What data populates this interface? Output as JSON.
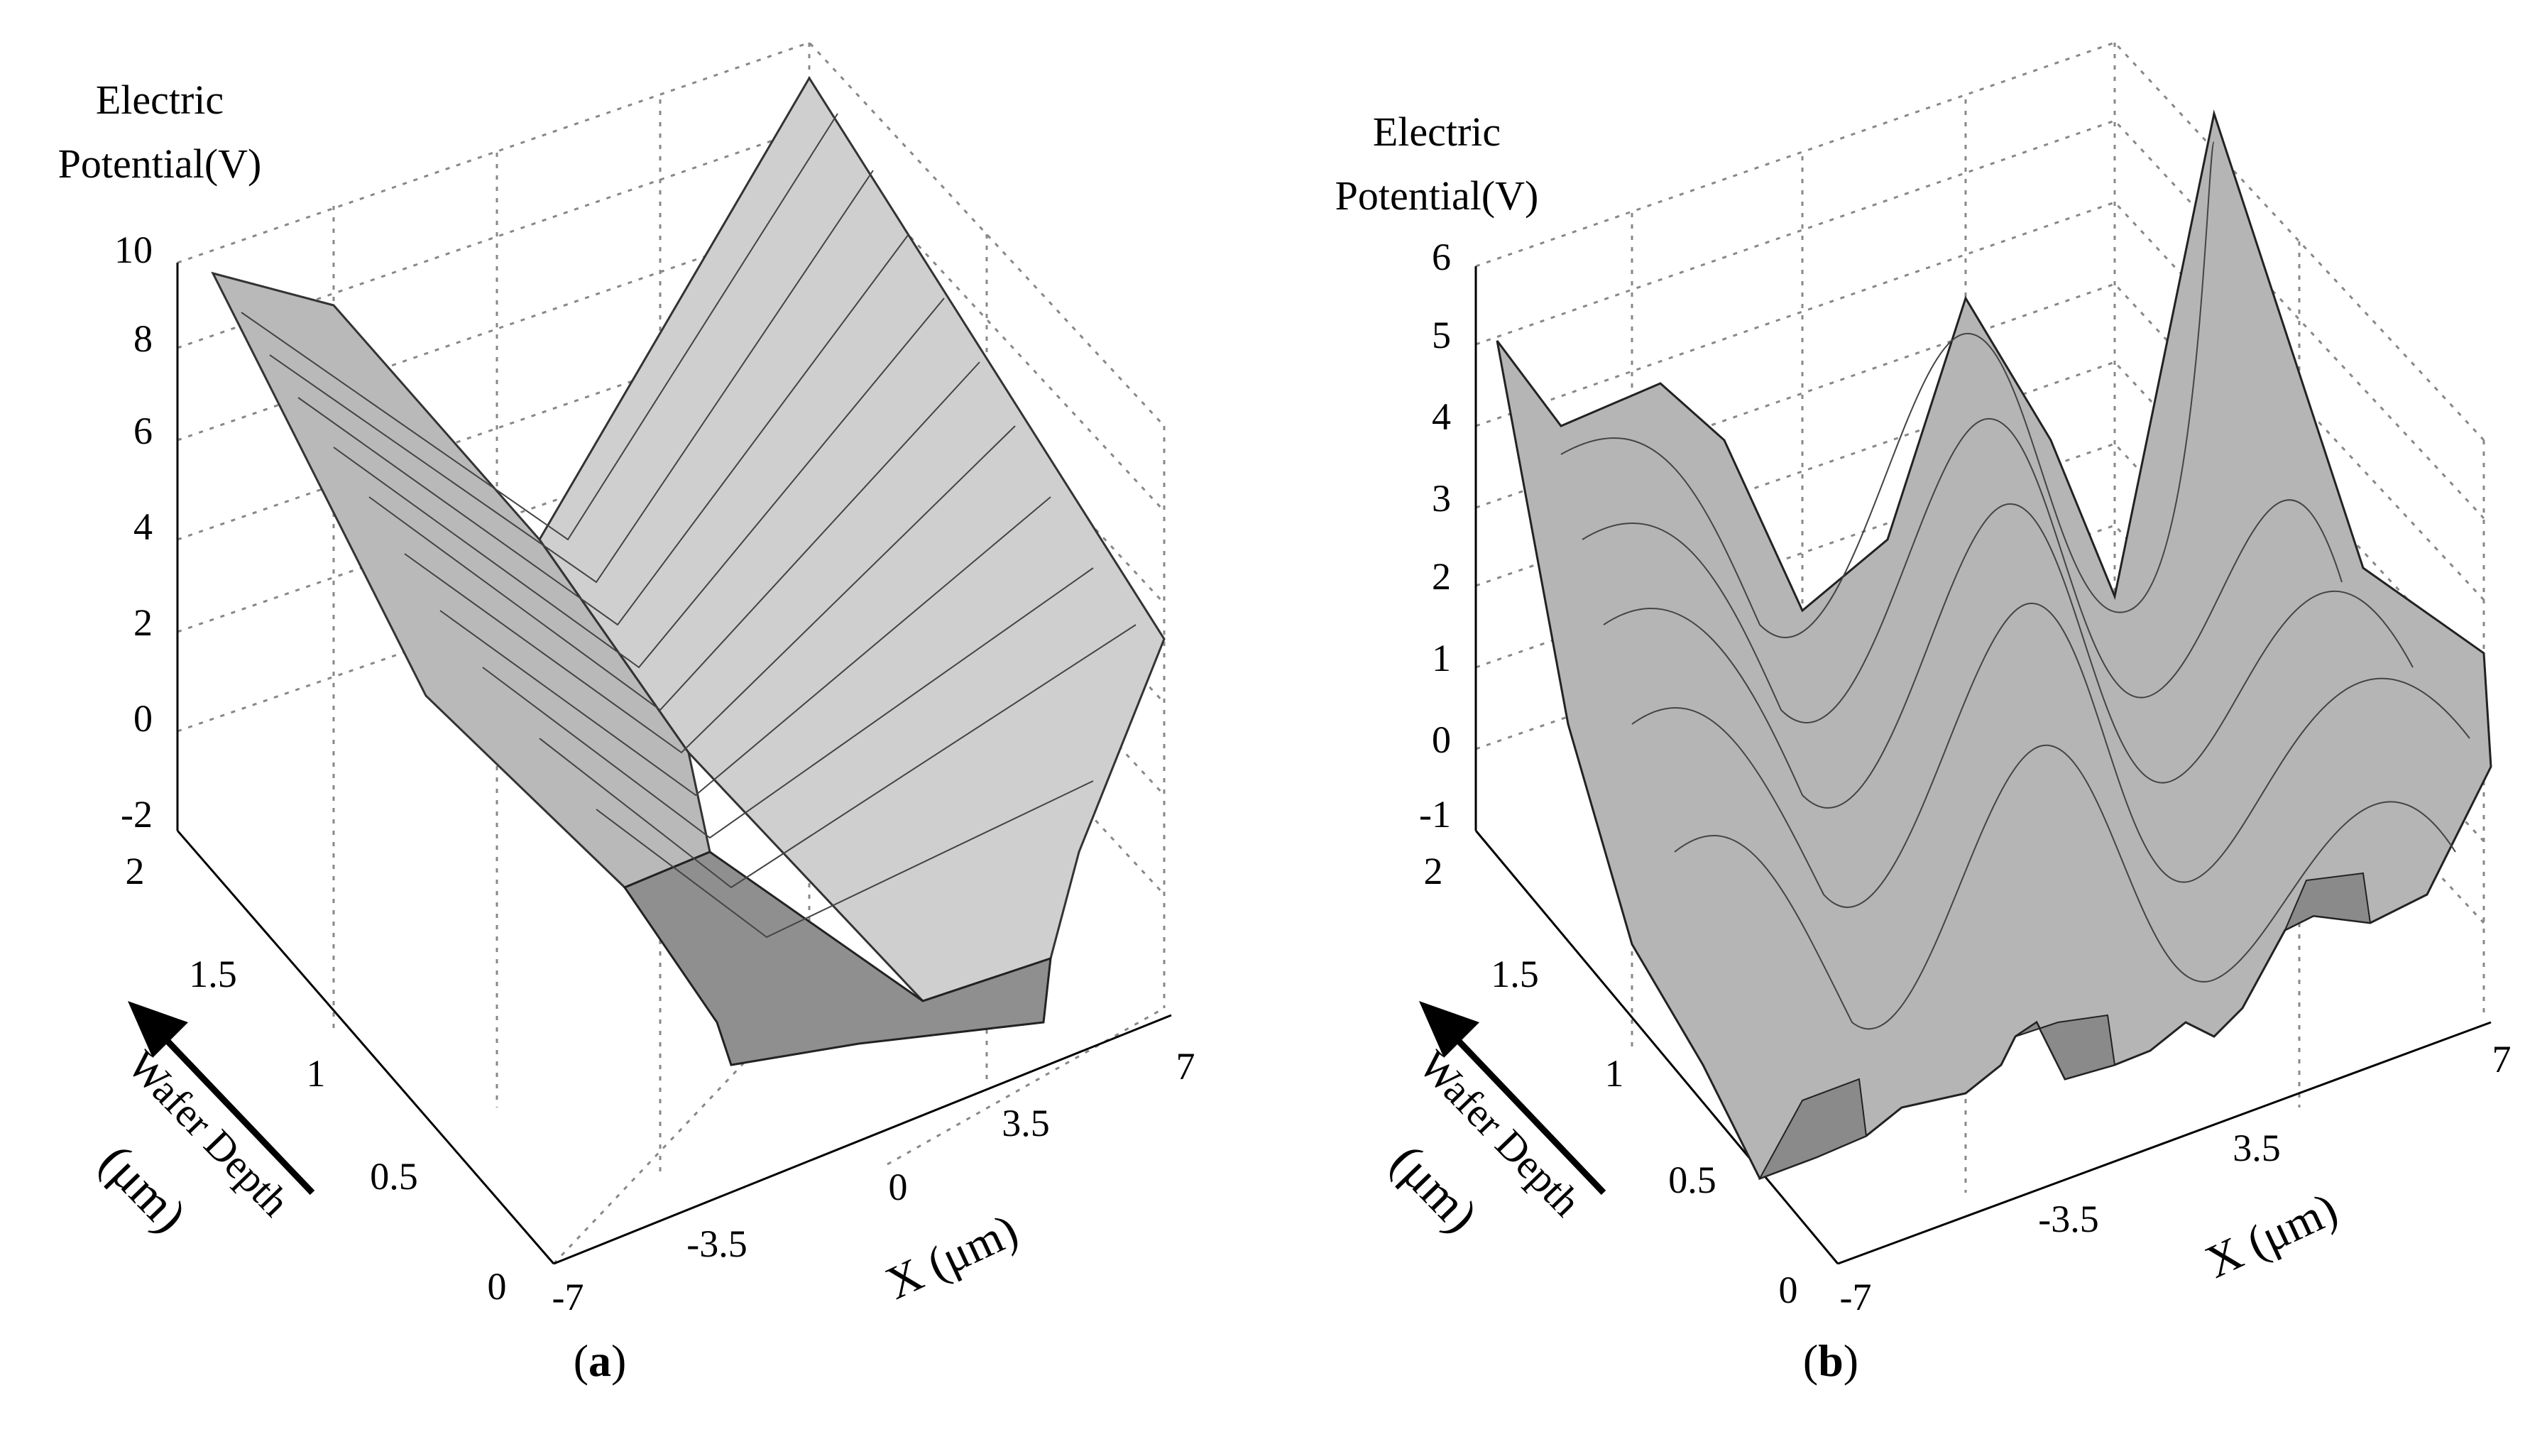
{
  "figure": {
    "panels": [
      {
        "caption_open": "(",
        "caption_letter": "a",
        "caption_close": ")"
      },
      {
        "caption_open": "(",
        "caption_letter": "b",
        "caption_close": ")"
      }
    ]
  },
  "chart_data": [
    {
      "type": "surface",
      "panel": "a",
      "zlabel": [
        "Electric",
        "Potential(V)"
      ],
      "ylabel": [
        "Wafer Depth",
        "(μm)"
      ],
      "xlabel": "X (μm)",
      "zlim": [
        -2,
        10
      ],
      "xlim": [
        -7,
        7
      ],
      "ylim": [
        0,
        2
      ],
      "z_ticks": [
        "10",
        "8",
        "6",
        "4",
        "2",
        "0",
        "-2"
      ],
      "y_ticks": [
        "2",
        "1.5",
        "1",
        "0.5",
        "0"
      ],
      "x_ticks": [
        "-7",
        "-3.5",
        "0",
        "3.5",
        "7"
      ],
      "grid": true,
      "surface_profile": {
        "x": [
          -7,
          -5.5,
          -4,
          -3.5,
          -3,
          -2,
          0,
          2,
          3,
          3.5,
          4,
          5.5,
          7
        ],
        "z_at_depth_0": [
          9.5,
          7,
          3.5,
          1,
          -0.5,
          -1.2,
          -1.3,
          -1.2,
          -0.8,
          0.5,
          2.5,
          6.5,
          10
        ]
      }
    },
    {
      "type": "surface",
      "panel": "b",
      "zlabel": [
        "Electric",
        "Potential(V)"
      ],
      "ylabel": [
        "Wafer Depth",
        "(μm)"
      ],
      "xlabel": "X (μm)",
      "zlim": [
        -1,
        6
      ],
      "xlim": [
        -7,
        7
      ],
      "ylim": [
        0,
        2
      ],
      "z_ticks": [
        "6",
        "5",
        "4",
        "3",
        "2",
        "1",
        "0",
        "-1"
      ],
      "y_ticks": [
        "2",
        "1.5",
        "1",
        "0.5",
        "0"
      ],
      "x_ticks": [
        "-7",
        "-3.5",
        "3.5",
        "7"
      ],
      "grid": true,
      "surface_profile": {
        "x": [
          -7,
          -6,
          -5,
          -4,
          -3,
          -2,
          -1,
          0,
          1,
          2,
          3,
          4,
          5,
          6,
          7
        ],
        "z_at_depth_0": [
          5,
          3.5,
          2.2,
          0.5,
          2.5,
          3.8,
          1.5,
          0.6,
          2.5,
          4,
          1.5,
          0.7,
          2.8,
          4.2,
          6
        ]
      }
    }
  ]
}
